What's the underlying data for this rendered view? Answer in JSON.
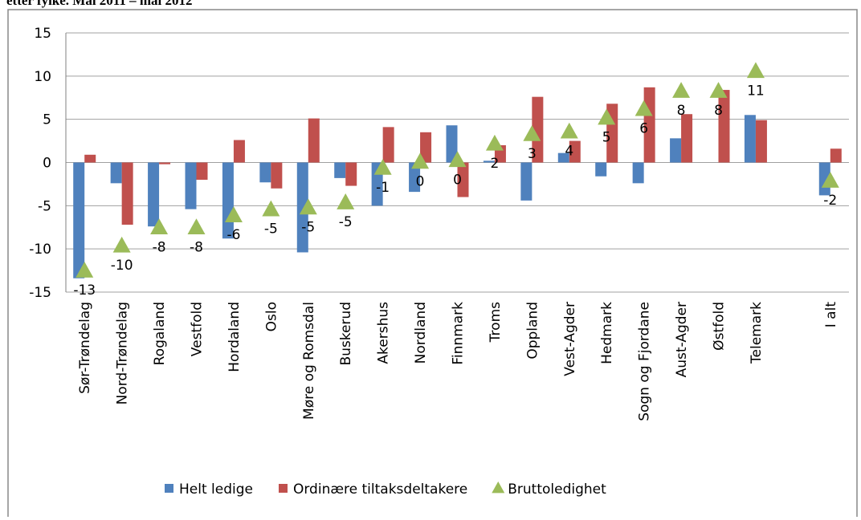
{
  "chart_data": {
    "type": "bar",
    "title": "etter fylke. Mai 2011 – mai 2012",
    "categories": [
      "Sør-Trøndelag",
      "Nord-Trøndelag",
      "Rogaland",
      "Vestfold",
      "Hordaland",
      "Oslo",
      "Møre og Romsdal",
      "Buskerud",
      "Akershus",
      "Nordland",
      "Finnmark",
      "Troms",
      "Oppland",
      "Vest-Agder",
      "Hedmark",
      "Sogn og Fjordane",
      "Aust-Agder",
      "Østfold",
      "Telemark",
      null,
      "I alt"
    ],
    "series": [
      {
        "name": "Helt ledige",
        "color": "#4f81bd",
        "values": [
          -13.4,
          -2.4,
          -7.4,
          -5.4,
          -8.8,
          -2.3,
          -10.4,
          -1.8,
          -5.0,
          -3.4,
          4.3,
          0.2,
          -4.4,
          1.1,
          -1.6,
          -2.4,
          2.8,
          0,
          5.5,
          null,
          -3.8
        ]
      },
      {
        "name": "Ordinære tiltaksdeltakere",
        "color": "#c0504d",
        "values": [
          0.9,
          -7.2,
          -0.2,
          -2.0,
          2.6,
          -3.0,
          5.1,
          -2.7,
          4.1,
          3.5,
          -4.0,
          2.0,
          7.6,
          2.5,
          6.8,
          8.7,
          5.6,
          8.4,
          4.9,
          null,
          1.6
        ]
      },
      {
        "name": "Bruttoledighet",
        "color": "#9bbb59",
        "marker": "triangle",
        "values": [
          -12.5,
          -9.6,
          -7.5,
          -7.5,
          -6.1,
          -5.4,
          -5.2,
          -4.6,
          -0.6,
          0.1,
          0.3,
          2.2,
          3.3,
          3.6,
          5.2,
          6.2,
          8.3,
          8.3,
          10.6,
          null,
          -2.1
        ],
        "value_labels": [
          "-13",
          "-10",
          "-8",
          "-8",
          "-6",
          "-5",
          "-5",
          "-5",
          "-1",
          "0",
          "0",
          "2",
          "3",
          "4",
          "5",
          "6",
          "8",
          "8",
          "11",
          null,
          "-2"
        ]
      }
    ],
    "ylim": [
      -15,
      15
    ],
    "yticks": [
      -15,
      -10,
      -5,
      0,
      5,
      10,
      15
    ],
    "grid": true,
    "legend": "bottom"
  }
}
